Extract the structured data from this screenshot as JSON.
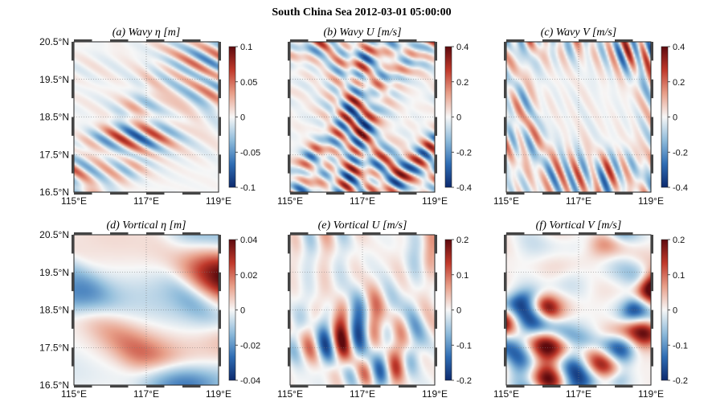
{
  "figure": {
    "title": "South China Sea 2012-03-01 05:00:00"
  },
  "chart_data": [
    {
      "type": "heatmap",
      "title": "(a)  Wavy η  [m]",
      "xlabel": "",
      "ylabel": "",
      "xticks": [
        "115°E",
        "117°E",
        "119°E"
      ],
      "yticks": [
        "20.5°N",
        "19.5°N",
        "18.5°N",
        "17.5°N",
        "16.5°N"
      ],
      "xlim": [
        115,
        119
      ],
      "ylim": [
        16.5,
        20.5
      ],
      "colorbar_ticks": [
        "0.1",
        "0.05",
        "0",
        "-0.05",
        "-0.1"
      ],
      "clim": [
        -0.1,
        0.1
      ],
      "colormap": [
        "#0d2a6e",
        "#2f6db4",
        "#8fbcdb",
        "#f7f7f7",
        "#e8a08a",
        "#c0392b",
        "#5e0a0e"
      ],
      "pattern": {
        "seed": 11,
        "kind": "stripes",
        "angle": -1.0,
        "freq": 0.22,
        "amp": 0.45
      }
    },
    {
      "type": "heatmap",
      "title": "(b)  Wavy U  [m/s]",
      "xlabel": "",
      "ylabel": "",
      "xticks": [
        "115°E",
        "117°E",
        "119°E"
      ],
      "yticks": [],
      "xlim": [
        115,
        119
      ],
      "ylim": [
        16.5,
        20.5
      ],
      "colorbar_ticks": [
        "0.4",
        "0.2",
        "0",
        "-0.2",
        "-0.4"
      ],
      "clim": [
        -0.4,
        0.4
      ],
      "colormap": [
        "#0d2a6e",
        "#2f6db4",
        "#8fbcdb",
        "#f7f7f7",
        "#e8a08a",
        "#c0392b",
        "#5e0a0e"
      ],
      "pattern": {
        "seed": 23,
        "kind": "stripes",
        "angle": -1.1,
        "freq": 0.25,
        "amp": 0.6
      }
    },
    {
      "type": "heatmap",
      "title": "(c)  Wavy V  [m/s]",
      "xlabel": "",
      "ylabel": "",
      "xticks": [
        "115°E",
        "117°E",
        "119°E"
      ],
      "yticks": [],
      "xlim": [
        115,
        119
      ],
      "ylim": [
        16.5,
        20.5
      ],
      "colorbar_ticks": [
        "0.4",
        "0.2",
        "0",
        "-0.2",
        "-0.4"
      ],
      "clim": [
        -0.4,
        0.4
      ],
      "colormap": [
        "#0d2a6e",
        "#2f6db4",
        "#8fbcdb",
        "#f7f7f7",
        "#e8a08a",
        "#c0392b",
        "#5e0a0e"
      ],
      "pattern": {
        "seed": 37,
        "kind": "stripes",
        "angle": -0.45,
        "freq": 0.23,
        "amp": 0.5
      }
    },
    {
      "type": "heatmap",
      "title": "(d)  Vortical η  [m]",
      "xlabel": "",
      "ylabel": "",
      "xticks": [
        "115°E",
        "117°E",
        "119°E"
      ],
      "yticks": [
        "20.5°N",
        "19.5°N",
        "18.5°N",
        "17.5°N",
        "16.5°N"
      ],
      "xlim": [
        115,
        119
      ],
      "ylim": [
        16.5,
        20.5
      ],
      "colorbar_ticks": [
        "0.04",
        "0.02",
        "0",
        "-0.02",
        "-0.04"
      ],
      "clim": [
        -0.04,
        0.04
      ],
      "colormap": [
        "#0d2a6e",
        "#2f6db4",
        "#8fbcdb",
        "#f7f7f7",
        "#e8a08a",
        "#c0392b",
        "#5e0a0e"
      ],
      "pattern": {
        "seed": 41,
        "kind": "blobs",
        "angle": 0,
        "freq": 0.06,
        "amp": 0.55
      }
    },
    {
      "type": "heatmap",
      "title": "(e)  Vortical U  [m/s]",
      "xlabel": "",
      "ylabel": "",
      "xticks": [
        "115°E",
        "117°E",
        "119°E"
      ],
      "yticks": [],
      "xlim": [
        115,
        119
      ],
      "ylim": [
        16.5,
        20.5
      ],
      "colorbar_ticks": [
        "0.2",
        "0.1",
        "0",
        "-0.1",
        "-0.2"
      ],
      "clim": [
        -0.2,
        0.2
      ],
      "colormap": [
        "#0d2a6e",
        "#2f6db4",
        "#8fbcdb",
        "#f7f7f7",
        "#e8a08a",
        "#c0392b",
        "#5e0a0e"
      ],
      "pattern": {
        "seed": 53,
        "kind": "bands",
        "angle": -0.2,
        "freq": 0.14,
        "amp": 0.6
      }
    },
    {
      "type": "heatmap",
      "title": "(f)  Vortical V  [m/s]",
      "xlabel": "",
      "ylabel": "",
      "xticks": [
        "115°E",
        "117°E",
        "119°E"
      ],
      "yticks": [],
      "xlim": [
        115,
        119
      ],
      "ylim": [
        16.5,
        20.5
      ],
      "colorbar_ticks": [
        "0.2",
        "0.1",
        "0",
        "-0.1",
        "-0.2"
      ],
      "clim": [
        -0.2,
        0.2
      ],
      "colormap": [
        "#0d2a6e",
        "#2f6db4",
        "#8fbcdb",
        "#f7f7f7",
        "#e8a08a",
        "#c0392b",
        "#5e0a0e"
      ],
      "pattern": {
        "seed": 67,
        "kind": "blobs",
        "angle": 0,
        "freq": 0.1,
        "amp": 0.65
      }
    }
  ]
}
